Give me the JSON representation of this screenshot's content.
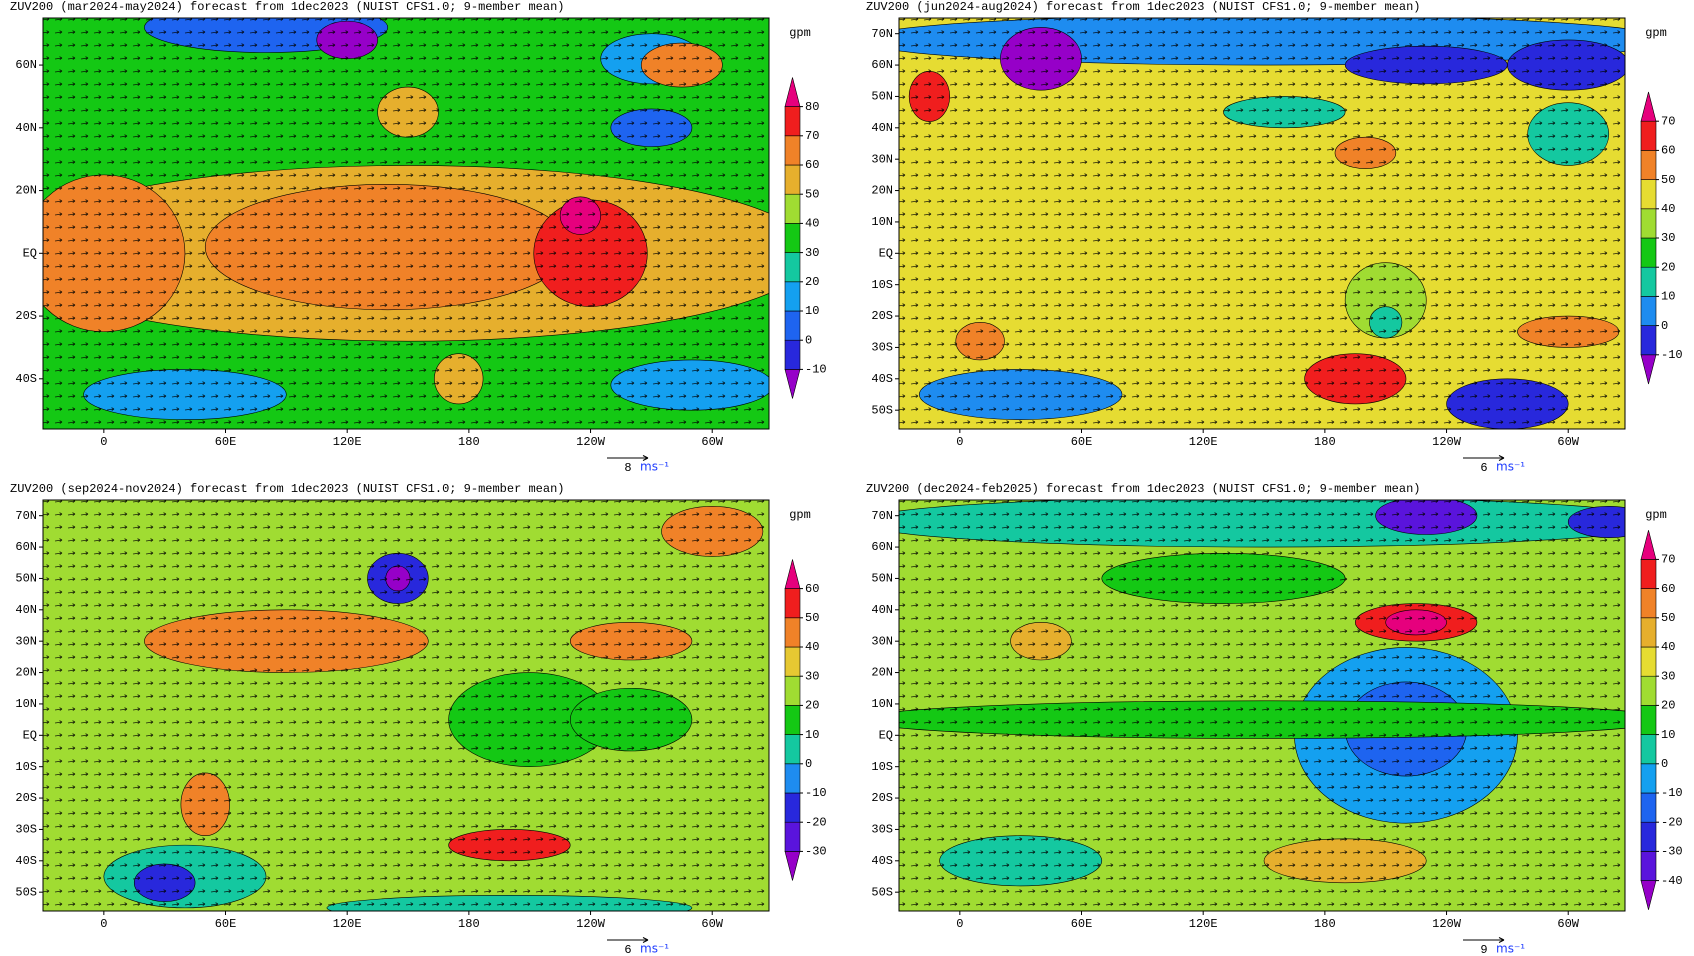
{
  "panels": [
    {
      "title": "ZUV200 (mar2024-may2024) forecast from 1dec2023 (NUIST CFS1.0; 9-member mean)",
      "units": "gpm",
      "lat_range": [
        -56,
        75
      ],
      "lon_range": [
        -30,
        328
      ],
      "lat_ticks": [
        {
          "value": 60,
          "label": "60N"
        },
        {
          "value": 40,
          "label": "40N"
        },
        {
          "value": 20,
          "label": "20N"
        },
        {
          "value": 0,
          "label": "EQ"
        },
        {
          "value": -20,
          "label": "20S"
        },
        {
          "value": -40,
          "label": "40S"
        }
      ],
      "lon_ticks": [
        0,
        {
          "value": 60,
          "label": "60E"
        },
        {
          "value": 120,
          "label": "120E"
        },
        180,
        {
          "value": 240,
          "label": "120W"
        },
        {
          "value": 300,
          "label": "60W"
        }
      ],
      "colorbar": {
        "ticks": [
          -10,
          0,
          10,
          20,
          30,
          40,
          50,
          60,
          70,
          80
        ],
        "colors": [
          "#9600c8",
          "#2828dc",
          "#1e64f0",
          "#14a0f0",
          "#14c8a0",
          "#14c814",
          "#a0dc32",
          "#e6af2d",
          "#f08228",
          "#f01e1e",
          "#e6007d"
        ]
      },
      "vector_scale": 8,
      "vector_unit": "ms⁻¹"
    },
    {
      "title": "ZUV200 (jun2024-aug2024) forecast from 1dec2023 (NUIST CFS1.0; 9-member mean)",
      "units": "gpm",
      "lat_range": [
        -56,
        75
      ],
      "lon_range": [
        -30,
        328
      ],
      "lat_ticks": [
        {
          "value": 70,
          "label": "70N"
        },
        {
          "value": 60,
          "label": "60N"
        },
        {
          "value": 50,
          "label": "50N"
        },
        {
          "value": 40,
          "label": "40N"
        },
        {
          "value": 30,
          "label": "30N"
        },
        {
          "value": 20,
          "label": "20N"
        },
        {
          "value": 10,
          "label": "10N"
        },
        {
          "value": 0,
          "label": "EQ"
        },
        {
          "value": -10,
          "label": "10S"
        },
        {
          "value": -20,
          "label": "20S"
        },
        {
          "value": -30,
          "label": "30S"
        },
        {
          "value": -40,
          "label": "40S"
        },
        {
          "value": -50,
          "label": "50S"
        }
      ],
      "lon_ticks": [
        0,
        {
          "value": 60,
          "label": "60E"
        },
        {
          "value": 120,
          "label": "120E"
        },
        180,
        {
          "value": 240,
          "label": "120W"
        },
        {
          "value": 300,
          "label": "60W"
        }
      ],
      "colorbar": {
        "ticks": [
          -10,
          0,
          10,
          20,
          30,
          40,
          50,
          60,
          70
        ],
        "colors": [
          "#9600c8",
          "#2828dc",
          "#1e8cf0",
          "#14c8a0",
          "#14c814",
          "#a0dc32",
          "#e6dc32",
          "#f08228",
          "#f01e1e",
          "#e6007d"
        ]
      },
      "vector_scale": 6,
      "vector_unit": "ms⁻¹"
    },
    {
      "title": "ZUV200 (sep2024-nov2024) forecast from 1dec2023 (NUIST CFS1.0; 9-member mean)",
      "units": "gpm",
      "lat_range": [
        -56,
        75
      ],
      "lon_range": [
        -30,
        328
      ],
      "lat_ticks": [
        {
          "value": 70,
          "label": "70N"
        },
        {
          "value": 60,
          "label": "60N"
        },
        {
          "value": 50,
          "label": "50N"
        },
        {
          "value": 40,
          "label": "40N"
        },
        {
          "value": 30,
          "label": "30N"
        },
        {
          "value": 20,
          "label": "20N"
        },
        {
          "value": 10,
          "label": "10N"
        },
        {
          "value": 0,
          "label": "EQ"
        },
        {
          "value": -10,
          "label": "10S"
        },
        {
          "value": -20,
          "label": "20S"
        },
        {
          "value": -30,
          "label": "30S"
        },
        {
          "value": -40,
          "label": "40S"
        },
        {
          "value": -50,
          "label": "50S"
        }
      ],
      "lon_ticks": [
        0,
        {
          "value": 60,
          "label": "60E"
        },
        {
          "value": 120,
          "label": "120E"
        },
        180,
        {
          "value": 240,
          "label": "120W"
        },
        {
          "value": 300,
          "label": "60W"
        }
      ],
      "colorbar": {
        "ticks": [
          -30,
          -20,
          -10,
          0,
          10,
          20,
          30,
          40,
          50,
          60
        ],
        "colors": [
          "#9600c8",
          "#5a14dc",
          "#2828dc",
          "#1e8cf0",
          "#14c8a0",
          "#14c814",
          "#a0dc32",
          "#e6c832",
          "#f08228",
          "#f01e1e",
          "#e6007d"
        ]
      },
      "vector_scale": 6,
      "vector_unit": "ms⁻¹"
    },
    {
      "title": "ZUV200 (dec2024-feb2025) forecast from 1dec2023 (NUIST CFS1.0; 9-member mean)",
      "units": "gpm",
      "lat_range": [
        -56,
        75
      ],
      "lon_range": [
        -30,
        328
      ],
      "lat_ticks": [
        {
          "value": 70,
          "label": "70N"
        },
        {
          "value": 60,
          "label": "60N"
        },
        {
          "value": 50,
          "label": "50N"
        },
        {
          "value": 40,
          "label": "40N"
        },
        {
          "value": 30,
          "label": "30N"
        },
        {
          "value": 20,
          "label": "20N"
        },
        {
          "value": 10,
          "label": "10N"
        },
        {
          "value": 0,
          "label": "EQ"
        },
        {
          "value": -10,
          "label": "10S"
        },
        {
          "value": -20,
          "label": "20S"
        },
        {
          "value": -30,
          "label": "30S"
        },
        {
          "value": -40,
          "label": "40S"
        },
        {
          "value": -50,
          "label": "50S"
        }
      ],
      "lon_ticks": [
        0,
        {
          "value": 60,
          "label": "60E"
        },
        {
          "value": 120,
          "label": "120E"
        },
        180,
        {
          "value": 240,
          "label": "120W"
        },
        {
          "value": 300,
          "label": "60W"
        }
      ],
      "colorbar": {
        "ticks": [
          -40,
          -30,
          -20,
          -10,
          0,
          10,
          20,
          30,
          40,
          50,
          60,
          70
        ],
        "colors": [
          "#9600c8",
          "#5a14dc",
          "#2828dc",
          "#1e64f0",
          "#14a0f0",
          "#14c8a0",
          "#14c814",
          "#a0dc32",
          "#e6dc32",
          "#e6af2d",
          "#f08228",
          "#f01e1e",
          "#e6007d"
        ]
      },
      "vector_scale": 9,
      "vector_unit": "ms⁻¹"
    }
  ]
}
